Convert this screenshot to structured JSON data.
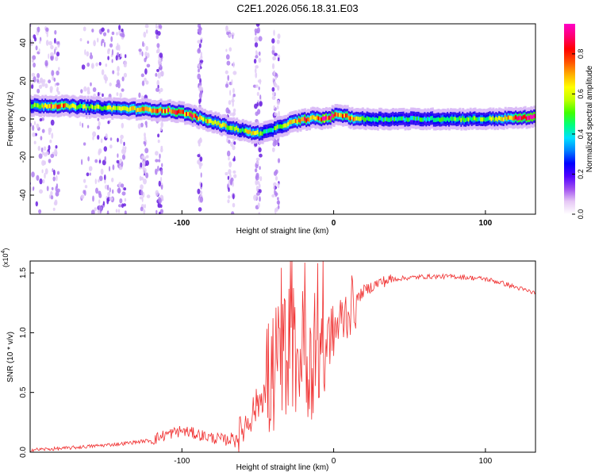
{
  "title": "C2E1.2026.056.18.31.E03",
  "chart_data": [
    {
      "type": "heatmap",
      "id": "spectrogram",
      "xlabel": "Height of straight line (km)",
      "ylabel": "Frequency (Hz)",
      "xlim": [
        -200,
        133
      ],
      "ylim": [
        -50,
        50
      ],
      "x_ticks": [
        -100,
        0,
        100
      ],
      "y_ticks": [
        -40,
        -20,
        0,
        20,
        40
      ],
      "colorbar": {
        "label": "Normalized spectral amplitude",
        "range": [
          0,
          0.95
        ],
        "ticks": [
          0.0,
          0.2,
          0.4,
          0.6,
          0.8
        ],
        "colormap": [
          "#ffffff",
          "#e6c8f5",
          "#a050f0",
          "#5000ff",
          "#0000ff",
          "#0080ff",
          "#00e0ff",
          "#00ff80",
          "#40ff00",
          "#c0ff00",
          "#ffff00",
          "#ffb000",
          "#ff5000",
          "#ff0000",
          "#ff0070",
          "#ff00c8"
        ]
      },
      "ridge": {
        "x": [
          -198,
          -185,
          -170,
          -155,
          -140,
          -125,
          -110,
          -100,
          -92,
          -85,
          -78,
          -70,
          -60,
          -52,
          -45,
          -38,
          -32,
          -26,
          -20,
          -14,
          -8,
          -2,
          3,
          8,
          12,
          20,
          40,
          60,
          80,
          100,
          120,
          133
        ],
        "y": [
          7,
          7,
          6.5,
          6,
          5.5,
          5,
          4.5,
          3.5,
          1.5,
          -0.5,
          -2,
          -4,
          -6,
          -7.5,
          -7,
          -5,
          -3,
          -1.5,
          -0.5,
          0.5,
          0,
          1,
          2.5,
          1.5,
          0.5,
          0,
          0,
          0,
          0,
          0,
          0.5,
          1
        ],
        "amplitude": [
          0.5,
          0.8,
          0.6,
          0.55,
          0.6,
          0.7,
          0.8,
          0.75,
          0.8,
          0.65,
          0.7,
          0.6,
          0.55,
          0.7,
          0.45,
          0.5,
          0.55,
          0.7,
          0.85,
          0.7,
          0.9,
          0.85,
          0.8,
          0.75,
          0.8,
          0.5,
          0.45,
          0.45,
          0.5,
          0.5,
          0.8,
          0.9
        ]
      }
    },
    {
      "type": "line",
      "id": "snr",
      "xlabel": "Height of straight line (km)",
      "ylabel": "SNR (10 * v/v)",
      "y_multiplier": "(x10",
      "y_multiplier_exp": "4",
      "xlim": [
        -200,
        133
      ],
      "ylim": [
        0,
        1.6
      ],
      "x_ticks": [
        -100,
        0,
        100
      ],
      "y_ticks": [
        0.0,
        0.5,
        1.0,
        1.5
      ],
      "y_tick_labels": [
        "0.0",
        "0.5",
        "1.0",
        "1.5"
      ],
      "color": "#f03030",
      "series": [
        {
          "name": "SNR",
          "x": [
            -200,
            -180,
            -160,
            -140,
            -120,
            -110,
            -100,
            -90,
            -80,
            -70,
            -62,
            -55,
            -48,
            -42,
            -36,
            -32,
            -28,
            -24,
            -20,
            -16,
            -12,
            -8,
            -4,
            0,
            5,
            10,
            20,
            30,
            40,
            60,
            80,
            90,
            100,
            110,
            120,
            133
          ],
          "y": [
            0.02,
            0.03,
            0.05,
            0.07,
            0.1,
            0.15,
            0.18,
            0.15,
            0.12,
            0.1,
            0.15,
            0.3,
            0.45,
            0.6,
            0.75,
            0.85,
            0.9,
            0.8,
            0.85,
            0.8,
            0.85,
            0.9,
            0.95,
            1.0,
            1.1,
            1.2,
            1.35,
            1.42,
            1.45,
            1.47,
            1.47,
            1.46,
            1.45,
            1.42,
            1.38,
            1.33
          ]
        }
      ]
    }
  ]
}
